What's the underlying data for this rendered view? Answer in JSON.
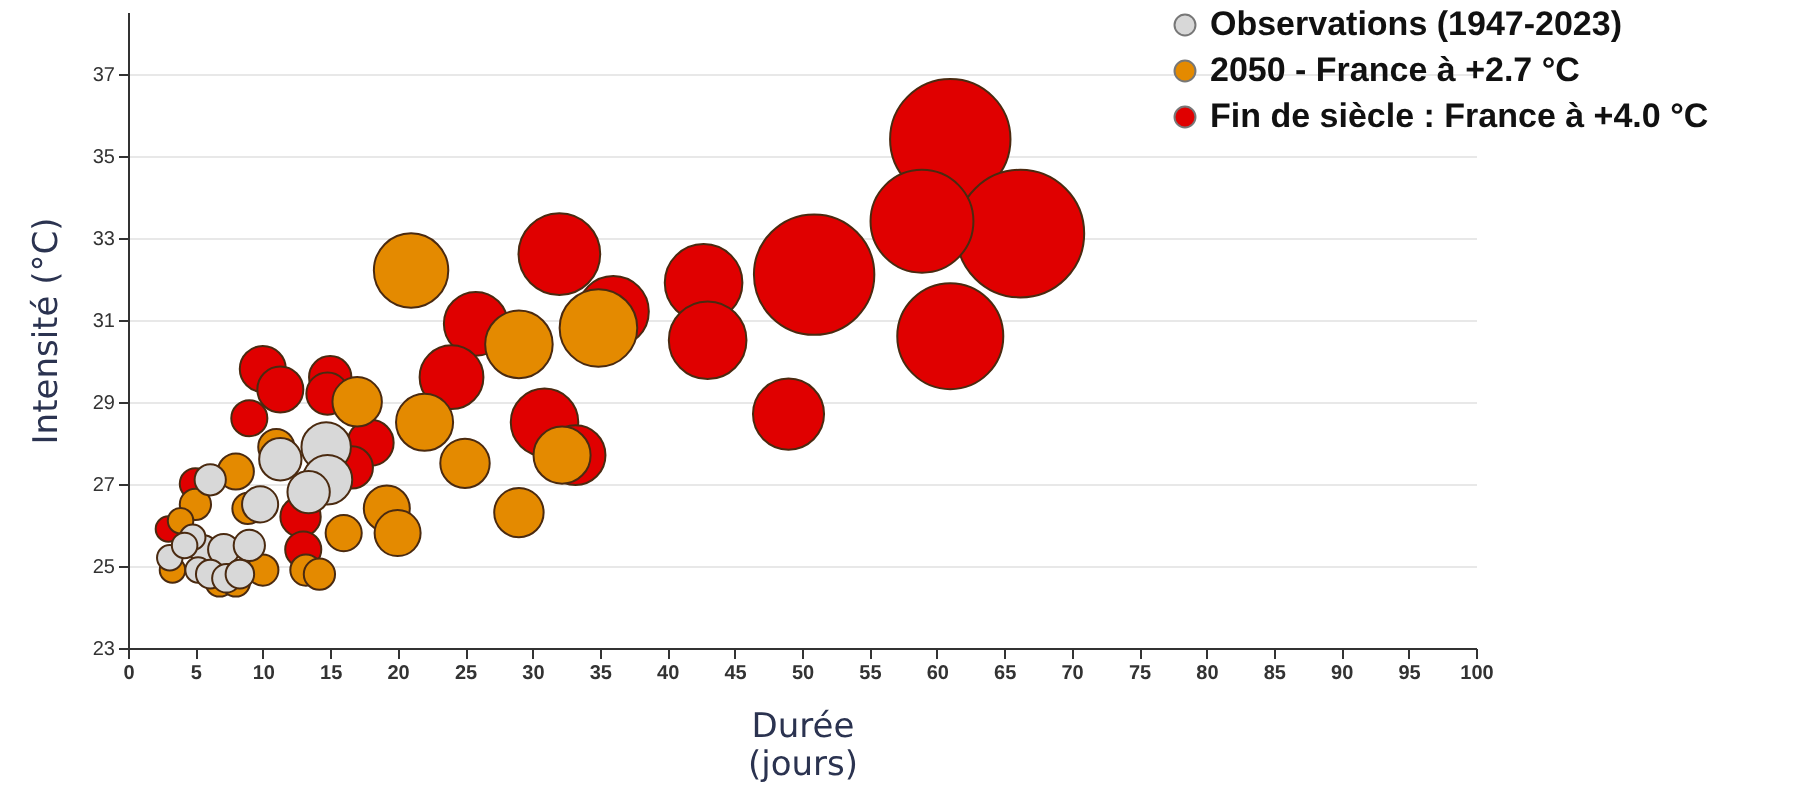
{
  "chart_data": {
    "type": "bubble",
    "xlabel": "Durée (jours)",
    "ylabel": "Intensité (°C)",
    "xlim": [
      0,
      100
    ],
    "xticks": [
      0,
      5,
      10,
      15,
      20,
      25,
      30,
      35,
      40,
      45,
      50,
      55,
      60,
      65,
      70,
      75,
      80,
      85,
      90,
      95,
      100
    ],
    "ylim": [
      23,
      38.5
    ],
    "yticks": [
      23,
      25,
      27,
      29,
      31,
      33,
      35,
      37
    ],
    "grid": "y",
    "legend": "top right",
    "series": [
      {
        "name": "Observations (1947-2023)",
        "color": "#d8d8d8",
        "x": [
          14.7,
          14.8,
          13.4,
          11.3,
          9.8,
          6.1,
          5.6,
          4.8,
          3.1,
          4.2,
          7.1,
          9,
          5.2,
          6.1,
          7.3,
          8.3
        ],
        "values": [
          27.9,
          27.1,
          26.8,
          27.6,
          26.5,
          27.1,
          25.4,
          25.7,
          25.2,
          25.5,
          25.4,
          25.5,
          24.9,
          24.8,
          24.7,
          24.8
        ],
        "sizes": [
          0.15,
          0.15,
          0.11,
          0.11,
          0.08,
          0.06,
          0.05,
          0.04,
          0.04,
          0.04,
          0.06,
          0.06,
          0.04,
          0.05,
          0.05,
          0.05
        ]
      },
      {
        "name": "2050 - France à +2.7 °C",
        "color": "#e48a00",
        "x": [
          21,
          34.9,
          29,
          17,
          22,
          25,
          32.2,
          29,
          19.2,
          20,
          16,
          13.2,
          14.2,
          10,
          8,
          11,
          5,
          3.9,
          3.3,
          6.8,
          8,
          8.9
        ],
        "values": [
          32.2,
          30.8,
          30.4,
          29,
          28.5,
          27.5,
          27.7,
          26.3,
          26.4,
          25.8,
          25.8,
          24.9,
          24.8,
          24.9,
          27.3,
          27.9,
          26.5,
          26.1,
          24.9,
          24.6,
          24.6,
          26.4
        ],
        "sizes": [
          0.34,
          0.37,
          0.28,
          0.15,
          0.2,
          0.15,
          0.2,
          0.15,
          0.13,
          0.13,
          0.08,
          0.06,
          0.06,
          0.06,
          0.08,
          0.08,
          0.06,
          0.04,
          0.04,
          0.05,
          0.05,
          0.06
        ]
      },
      {
        "name": "Fin de siècle : France à +4.0 °C",
        "color": "#e00000",
        "x": [
          61,
          66.2,
          58.9,
          61,
          50.9,
          42.7,
          43,
          49,
          32,
          36,
          25.8,
          24,
          30.9,
          33.2,
          10,
          11.3,
          15,
          14.8,
          9,
          18,
          16.6,
          12.8,
          13,
          3,
          5
        ],
        "values": [
          35.4,
          33.1,
          33.4,
          30.6,
          32.1,
          31.9,
          30.5,
          28.7,
          32.6,
          31.2,
          30.9,
          29.6,
          28.5,
          27.7,
          29.8,
          29.3,
          29.6,
          29.2,
          28.6,
          28,
          27.4,
          26.2,
          25.4,
          25.9,
          27
        ],
        "sizes": [
          0.89,
          1,
          0.65,
          0.69,
          0.89,
          0.37,
          0.37,
          0.31,
          0.41,
          0.31,
          0.25,
          0.25,
          0.28,
          0.22,
          0.13,
          0.13,
          0.11,
          0.11,
          0.08,
          0.13,
          0.11,
          0.1,
          0.08,
          0.04,
          0.06
        ]
      }
    ]
  }
}
